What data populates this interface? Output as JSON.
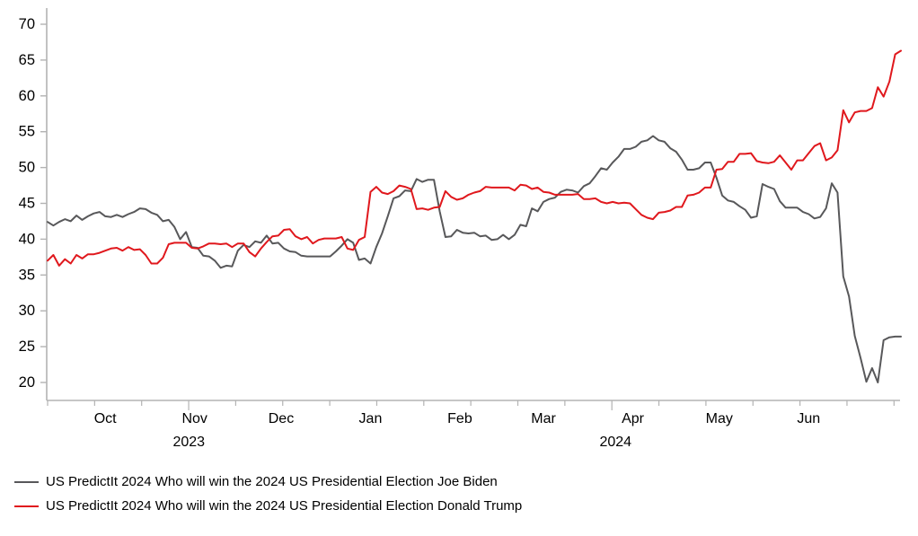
{
  "chart_data": {
    "type": "line",
    "title": "",
    "grid": false,
    "legend_position": "bottom-left",
    "x_axis": {
      "unit": "days",
      "xlim_days": [
        0,
        296
      ],
      "sample_interval_days": 2,
      "months": [
        {
          "label": "Oct",
          "day": 20
        },
        {
          "label": "Nov",
          "day": 51
        },
        {
          "label": "Dec",
          "day": 81
        },
        {
          "label": "Jan",
          "day": 112
        },
        {
          "label": "Feb",
          "day": 143
        },
        {
          "label": "Mar",
          "day": 172
        },
        {
          "label": "Apr",
          "day": 203
        },
        {
          "label": "May",
          "day": 233
        },
        {
          "label": "Jun",
          "day": 264
        }
      ],
      "years": [
        {
          "label": "2023",
          "day": 49
        },
        {
          "label": "2024",
          "day": 197
        }
      ]
    },
    "y_axis": {
      "ylim": [
        20,
        70
      ],
      "tick_step": 5,
      "ticks": [
        20,
        25,
        30,
        35,
        40,
        45,
        50,
        55,
        60,
        65,
        70
      ]
    },
    "series": [
      {
        "name": "US PredictIt 2024 Who will win the 2024 US Presidential Election Joe Biden",
        "color": "#58585A",
        "values": [
          42.4,
          41.9,
          42.4,
          42.8,
          42.5,
          43.3,
          42.7,
          43.2,
          43.6,
          43.8,
          43.2,
          43.1,
          43.4,
          43.1,
          43.5,
          43.8,
          44.3,
          44.2,
          43.7,
          43.4,
          42.5,
          42.7,
          41.7,
          40.0,
          41.0,
          38.9,
          38.8,
          37.7,
          37.6,
          37.0,
          36.0,
          36.3,
          36.2,
          38.4,
          39.2,
          38.9,
          39.7,
          39.5,
          40.5,
          39.4,
          39.5,
          38.7,
          38.3,
          38.2,
          37.7,
          37.6,
          37.6,
          37.6,
          37.6,
          37.6,
          38.3,
          39.1,
          40.0,
          39.5,
          37.1,
          37.3,
          36.6,
          38.9,
          40.8,
          43.2,
          45.7,
          46.0,
          46.8,
          46.7,
          48.4,
          48.0,
          48.3,
          48.3,
          43.9,
          40.3,
          40.4,
          41.3,
          40.9,
          40.8,
          40.9,
          40.4,
          40.5,
          39.9,
          40.0,
          40.6,
          40.0,
          40.6,
          42.0,
          41.8,
          44.3,
          43.9,
          45.2,
          45.6,
          45.8,
          46.6,
          46.9,
          46.8,
          46.5,
          47.4,
          47.8,
          48.8,
          49.9,
          49.7,
          50.7,
          51.5,
          52.6,
          52.6,
          52.9,
          53.6,
          53.8,
          54.4,
          53.8,
          53.6,
          52.7,
          52.2,
          51.1,
          49.7,
          49.7,
          49.9,
          50.7,
          50.7,
          48.6,
          46.1,
          45.4,
          45.2,
          44.6,
          44.1,
          43.0,
          43.2,
          47.7,
          47.3,
          47.0,
          45.3,
          44.4,
          44.4,
          44.4,
          43.8,
          43.5,
          42.9,
          43.1,
          44.3,
          47.8,
          46.5,
          34.8,
          32.0,
          26.5,
          23.4,
          20.1,
          22.0,
          20.0,
          25.9,
          26.3,
          26.4,
          26.4
        ]
      },
      {
        "name": "US PredictIt 2024 Who will win the 2024 US Presidential Election Donald Trump",
        "color": "#E0181D",
        "values": [
          37.0,
          37.8,
          36.3,
          37.2,
          36.6,
          37.8,
          37.3,
          37.9,
          37.9,
          38.1,
          38.4,
          38.7,
          38.8,
          38.4,
          38.9,
          38.5,
          38.6,
          37.8,
          36.6,
          36.6,
          37.4,
          39.3,
          39.5,
          39.5,
          39.5,
          38.8,
          38.7,
          39.0,
          39.4,
          39.4,
          39.3,
          39.4,
          38.9,
          39.4,
          39.4,
          38.2,
          37.6,
          38.7,
          39.6,
          40.4,
          40.5,
          41.3,
          41.4,
          40.4,
          40.0,
          40.3,
          39.4,
          39.9,
          40.1,
          40.1,
          40.1,
          40.3,
          38.7,
          38.5,
          39.9,
          40.3,
          46.6,
          47.3,
          46.5,
          46.3,
          46.7,
          47.5,
          47.3,
          47.0,
          44.2,
          44.3,
          44.1,
          44.4,
          44.5,
          46.7,
          45.9,
          45.5,
          45.7,
          46.2,
          46.5,
          46.7,
          47.3,
          47.2,
          47.2,
          47.2,
          47.2,
          46.8,
          47.6,
          47.5,
          47.0,
          47.2,
          46.6,
          46.5,
          46.2,
          46.2,
          46.2,
          46.2,
          46.3,
          45.6,
          45.6,
          45.7,
          45.2,
          45.0,
          45.2,
          45.0,
          45.1,
          45.0,
          44.2,
          43.4,
          43.0,
          42.8,
          43.7,
          43.8,
          44.0,
          44.5,
          44.5,
          46.1,
          46.2,
          46.5,
          47.2,
          47.2,
          49.7,
          49.8,
          50.8,
          50.8,
          51.9,
          51.9,
          52.0,
          50.9,
          50.7,
          50.6,
          50.8,
          51.7,
          50.7,
          49.7,
          51.0,
          51.0,
          52.0,
          53.0,
          53.4,
          51.0,
          51.4,
          52.4,
          58.0,
          56.3,
          57.7,
          57.9,
          57.9,
          58.3,
          61.2,
          59.9,
          62.0,
          65.8,
          66.3
        ]
      }
    ],
    "colors": {
      "axis": "#B3B3B3",
      "text": "#000000"
    }
  }
}
